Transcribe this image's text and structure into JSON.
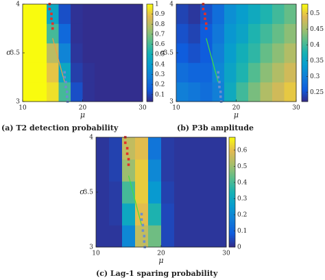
{
  "chart_data": [
    {
      "type": "heatmap",
      "caption": "(a) T2 detection probability",
      "xlabel": "μ",
      "ylabel": "σ",
      "colormap": "parula",
      "x": [
        11,
        13,
        15,
        17,
        19,
        21,
        23,
        25,
        27,
        29
      ],
      "y": [
        3.1,
        3.3,
        3.5,
        3.7,
        3.9
      ],
      "z": [
        [
          1,
          1,
          0.95,
          0.6,
          0.12,
          0.05,
          0.04,
          0.04,
          0.04,
          0.04
        ],
        [
          1,
          1,
          0.9,
          0.45,
          0.08,
          0.05,
          0.04,
          0.04,
          0.04,
          0.04
        ],
        [
          1,
          1,
          0.8,
          0.3,
          0.06,
          0.04,
          0.04,
          0.04,
          0.04,
          0.04
        ],
        [
          1,
          1,
          0.6,
          0.2,
          0.05,
          0.04,
          0.04,
          0.04,
          0.04,
          0.04
        ],
        [
          1,
          1,
          0.45,
          0.12,
          0.05,
          0.04,
          0.04,
          0.04,
          0.04,
          0.04
        ]
      ],
      "xlim": [
        10,
        30
      ],
      "ylim": [
        3,
        4
      ],
      "xticks": [
        10,
        20,
        30
      ],
      "yticks": [
        3,
        3.5,
        4
      ],
      "zlim": [
        0.03,
        1
      ],
      "zticks": [
        0.1,
        0.2,
        0.3,
        0.4,
        0.5,
        0.6,
        0.7,
        0.8,
        0.9,
        1
      ],
      "markers": [
        {
          "color": "#e0302a",
          "x": [
            14.5,
            14.5,
            14.8,
            14.8,
            15,
            15
          ],
          "y": [
            4,
            3.95,
            3.9,
            3.85,
            3.8,
            3.75
          ]
        },
        {
          "color": "#6a8fd0",
          "x": [
            17,
            17,
            17.2,
            17.2,
            17.4,
            17.4,
            17.5
          ],
          "y": [
            3.3,
            3.25,
            3.2,
            3.15,
            3.1,
            3.05,
            3
          ]
        }
      ],
      "lines": [
        {
          "color": "#f0a040",
          "x": [
            15,
            17
          ],
          "y": [
            3.65,
            3.2
          ]
        }
      ]
    },
    {
      "type": "heatmap",
      "caption": "(b) P3b amplitude",
      "xlabel": "μ",
      "ylabel": "σ",
      "colormap": "parula",
      "x": [
        11,
        13,
        15,
        17,
        19,
        21,
        23,
        25,
        27,
        29
      ],
      "y": [
        3.1,
        3.3,
        3.5,
        3.7,
        3.9
      ],
      "z": [
        [
          0.3,
          0.29,
          0.28,
          0.3,
          0.36,
          0.4,
          0.43,
          0.46,
          0.48,
          0.5
        ],
        [
          0.28,
          0.27,
          0.27,
          0.31,
          0.35,
          0.38,
          0.41,
          0.44,
          0.46,
          0.48
        ],
        [
          0.26,
          0.25,
          0.26,
          0.3,
          0.34,
          0.37,
          0.39,
          0.42,
          0.44,
          0.46
        ],
        [
          0.25,
          0.24,
          0.26,
          0.29,
          0.33,
          0.35,
          0.38,
          0.4,
          0.42,
          0.44
        ],
        [
          0.24,
          0.23,
          0.25,
          0.28,
          0.32,
          0.34,
          0.36,
          0.38,
          0.4,
          0.42
        ]
      ],
      "xlim": [
        10,
        30
      ],
      "ylim": [
        3,
        4
      ],
      "xticks": [
        10,
        20,
        30
      ],
      "yticks": [
        3,
        3.5,
        4
      ],
      "zlim": [
        0.22,
        0.53
      ],
      "zticks": [
        0.25,
        0.3,
        0.35,
        0.4,
        0.45,
        0.5
      ],
      "markers": [
        {
          "color": "#e0302a",
          "x": [
            14.5,
            14.5,
            14.8,
            14.8,
            15,
            15
          ],
          "y": [
            4,
            3.95,
            3.9,
            3.85,
            3.8,
            3.75
          ]
        },
        {
          "color": "#6a8fd0",
          "x": [
            17,
            17,
            17.2,
            17.2,
            17.4,
            17.4,
            17.5
          ],
          "y": [
            3.3,
            3.25,
            3.2,
            3.15,
            3.1,
            3.05,
            3
          ]
        }
      ],
      "lines": [
        {
          "color": "#40e040",
          "x": [
            15,
            17
          ],
          "y": [
            3.65,
            3.2
          ]
        }
      ]
    },
    {
      "type": "heatmap",
      "caption": "(c) Lag-1 sparing probability",
      "xlabel": "μ",
      "ylabel": "σ",
      "colormap": "parula",
      "x": [
        11,
        13,
        15,
        17,
        19,
        21,
        23,
        25,
        27,
        29
      ],
      "y": [
        3.1,
        3.3,
        3.5,
        3.7,
        3.9
      ],
      "z": [
        [
          0.02,
          0.02,
          0.2,
          0.55,
          0.45,
          0.05,
          0.02,
          0.02,
          0.02,
          0.02
        ],
        [
          0.02,
          0.03,
          0.3,
          0.6,
          0.35,
          0.05,
          0.02,
          0.02,
          0.02,
          0.02
        ],
        [
          0.02,
          0.03,
          0.4,
          0.62,
          0.25,
          0.04,
          0.02,
          0.02,
          0.02,
          0.02
        ],
        [
          0.02,
          0.04,
          0.5,
          0.62,
          0.2,
          0.03,
          0.02,
          0.02,
          0.02,
          0.02
        ],
        [
          0.02,
          0.04,
          0.55,
          0.6,
          0.15,
          0.03,
          0.02,
          0.02,
          0.02,
          0.02
        ]
      ],
      "xlim": [
        10,
        30
      ],
      "ylim": [
        3,
        4
      ],
      "xticks": [
        10,
        20,
        30
      ],
      "yticks": [
        3,
        3.5,
        4
      ],
      "zlim": [
        0,
        0.68
      ],
      "zticks": [
        0,
        0.1,
        0.2,
        0.3,
        0.4,
        0.5,
        0.6
      ],
      "markers": [
        {
          "color": "#e0302a",
          "x": [
            14.5,
            14.5,
            14.8,
            14.8,
            15,
            15
          ],
          "y": [
            4,
            3.95,
            3.9,
            3.85,
            3.8,
            3.75
          ]
        },
        {
          "color": "#6a8fd0",
          "x": [
            17,
            17,
            17.2,
            17.2,
            17.4,
            17.4,
            17.5
          ],
          "y": [
            3.3,
            3.25,
            3.2,
            3.15,
            3.1,
            3.05,
            3
          ]
        }
      ],
      "lines": [
        {
          "color": "#40e040",
          "x": [
            15,
            17
          ],
          "y": [
            3.65,
            3.2
          ]
        }
      ]
    }
  ]
}
